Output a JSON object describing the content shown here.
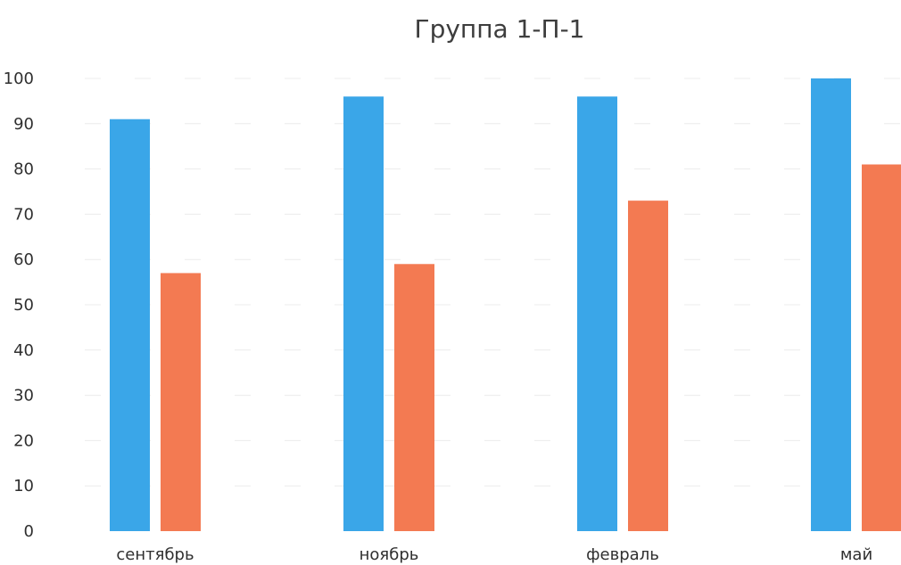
{
  "chart_data": {
    "type": "bar",
    "title": "Группа 1-П-1",
    "categories": [
      "сентябрь",
      "ноябрь",
      "февраль",
      "май"
    ],
    "series": [
      {
        "values": [
          91,
          96,
          96,
          100
        ],
        "color": "#3aa6e8"
      },
      {
        "values": [
          57,
          59,
          73,
          81
        ],
        "color": "#f37a52"
      }
    ],
    "yticks": [
      "0",
      "10",
      "20",
      "30",
      "40",
      "50",
      "60",
      "70",
      "80",
      "90",
      "100"
    ],
    "ylim": [
      0,
      100
    ],
    "xlabel": "",
    "ylabel": "",
    "grid": true,
    "legend": "none"
  }
}
